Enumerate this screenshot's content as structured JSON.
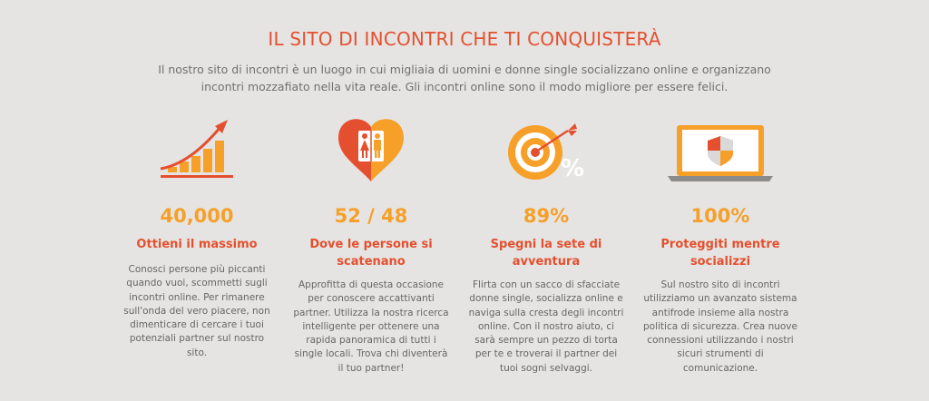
{
  "header": {
    "title": "IL SITO DI INCONTRI CHE TI CONQUISTERÀ",
    "intro": "Il nostro sito di incontri è un luogo in cui migliaia di uomini e donne single socializzano online e organizzano incontri mozzafiato nella vita reale. Gli incontri online sono il modo migliore per essere felici."
  },
  "colors": {
    "accent_red": "#e4502f",
    "accent_orange": "#f6a02a",
    "background": "#e5e4e2",
    "text_gray": "#666666"
  },
  "features": [
    {
      "icon": "growth-chart-icon",
      "stat": "40,000",
      "title": "Ottieni il massimo",
      "description": "Conosci persone più piccanti quando vuoi, scommetti sugli incontri online. Per rimanere sull'onda del vero piacere, non dimenticare di cercare i tuoi potenziali partner sul nostro sito."
    },
    {
      "icon": "heart-couple-icon",
      "stat": "52 / 48",
      "title": "Dove le persone si scatenano",
      "description": "Approfitta di questa occasione per conoscere accattivanti partner. Utilizza la nostra ricerca intelligente per ottenere una rapida panoramica di tutti i single locali. Trova chi diventerà il tuo partner!"
    },
    {
      "icon": "target-percent-icon",
      "stat": "89%",
      "title": "Spegni la sete di avventura",
      "description": "Flirta con un sacco di sfacciate donne single, socializza online e naviga sulla cresta degli incontri online. Con il nostro aiuto, ci sarà sempre un pezzo di torta per te e troverai il partner dei tuoi sogni selvaggi."
    },
    {
      "icon": "laptop-shield-icon",
      "stat": "100%",
      "title": "Proteggiti mentre socializzi",
      "description": "Sul nostro sito di incontri utilizziamo un avanzato sistema antifrode insieme alla nostra politica di sicurezza. Crea nuove connessioni utilizzando i nostri sicuri strumenti di comunicazione."
    }
  ]
}
